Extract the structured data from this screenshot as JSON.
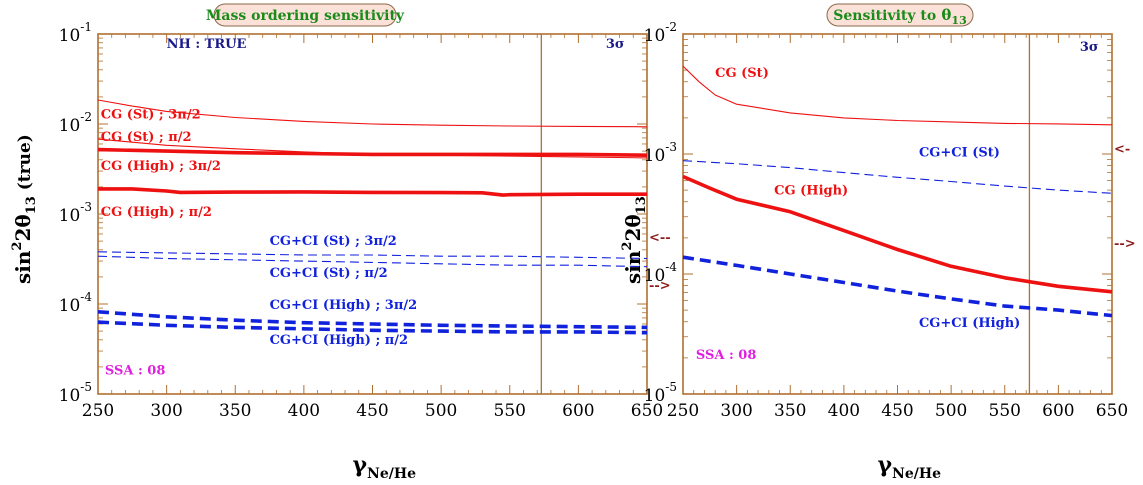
{
  "chart_data": [
    {
      "type": "line",
      "title": "Mass ordering sensitivity",
      "xlabel": "γ",
      "xlabel_sub": "Ne/He",
      "ylabel": "sin²2θ₁₃(true)",
      "ylabel_parts": {
        "exp": "2",
        "base": "sin",
        "mid": "2θ",
        "sub": "13",
        "tail": " (true)"
      },
      "xlim": [
        250,
        650
      ],
      "ylim": [
        1e-05,
        0.1
      ],
      "yscale": "log",
      "x_ticks": [
        250,
        300,
        350,
        400,
        450,
        500,
        550,
        600,
        650
      ],
      "y_ticks": [
        {
          "value": 1e-05,
          "exp": "-5"
        },
        {
          "value": 0.0001,
          "exp": "-4"
        },
        {
          "value": 0.001,
          "exp": "-3"
        },
        {
          "value": 0.01,
          "exp": "-2"
        },
        {
          "value": 0.1,
          "exp": "-1"
        }
      ],
      "ytick_base": "10",
      "vline_x": 573,
      "colors": {
        "red": "#ee1111",
        "blue": "#1122dd",
        "vline": "#b07030",
        "arrow": "#8b1a1a",
        "magenta": "#e020e0",
        "navy": "#1a1a8a",
        "title_green": "#1a8a1a",
        "title_bg": "#fbe1d8"
      },
      "top_labels": [
        {
          "text": "NH : TRUE",
          "color": "navy",
          "anchor_x": 300,
          "anchor_y": 0.07
        },
        {
          "text": "3σ",
          "color": "navy",
          "anchor_x": 620,
          "anchor_y": 0.07
        }
      ],
      "corner_label": {
        "text": "SSA : 08",
        "color": "magenta",
        "anchor_x": 255,
        "anchor_y": 1.65e-05
      },
      "arrows": [
        {
          "text": "<--",
          "anchor_y": 0.00055
        },
        {
          "text": "-->",
          "anchor_y": 0.00016
        }
      ],
      "series": [
        {
          "name": "CG (St) ; 3π/2",
          "style": "thin",
          "color": "red",
          "x": [
            250,
            275,
            300,
            350,
            400,
            450,
            500,
            550,
            600,
            650
          ],
          "y": [
            0.0185,
            0.0158,
            0.0138,
            0.0118,
            0.0107,
            0.01,
            0.0097,
            0.0095,
            0.0094,
            0.0093
          ],
          "label_at": [
            252,
            0.0115
          ]
        },
        {
          "name": "CG (St) ; π/2",
          "style": "thin",
          "color": "red",
          "x": [
            250,
            300,
            350,
            400,
            450,
            500,
            550,
            600,
            650
          ],
          "y": [
            0.0068,
            0.0058,
            0.0053,
            0.0049,
            0.0046,
            0.0045,
            0.0044,
            0.0043,
            0.0042
          ],
          "label_at": [
            252,
            0.0065
          ]
        },
        {
          "name": "CG (High) ;  3π/2",
          "style": "thick",
          "color": "red",
          "x": [
            250,
            300,
            350,
            400,
            450,
            500,
            550,
            600,
            650
          ],
          "y": [
            0.0052,
            0.005,
            0.0048,
            0.0047,
            0.0046,
            0.0046,
            0.0046,
            0.0046,
            0.0045
          ],
          "label_at": [
            252,
            0.0031
          ]
        },
        {
          "name": "CG (High) ; π/2",
          "style": "thick",
          "color": "red",
          "x": [
            250,
            275,
            300,
            310,
            350,
            400,
            450,
            500,
            530,
            545,
            550,
            600,
            650
          ],
          "y": [
            0.0019,
            0.0019,
            0.0018,
            0.00174,
            0.00175,
            0.00176,
            0.00174,
            0.00173,
            0.00172,
            0.00162,
            0.00164,
            0.00166,
            0.00166
          ],
          "label_at": [
            252,
            0.00095
          ]
        },
        {
          "name": "CG+CI (St) ;  3π/2",
          "style": "thin-dashed",
          "color": "blue",
          "x": [
            250,
            300,
            350,
            400,
            450,
            500,
            550,
            600,
            650
          ],
          "y": [
            0.00038,
            0.00037,
            0.00036,
            0.00035,
            0.00035,
            0.00034,
            0.00034,
            0.00033,
            0.00032
          ],
          "label_at": [
            375,
            0.00045
          ]
        },
        {
          "name": "CG+CI (St) ;  π/2",
          "style": "thin-dashed",
          "color": "blue",
          "x": [
            250,
            300,
            350,
            400,
            450,
            500,
            550,
            600,
            650
          ],
          "y": [
            0.00034,
            0.00032,
            0.00031,
            0.0003,
            0.00029,
            0.00028,
            0.00027,
            0.00027,
            0.00026
          ],
          "label_at": [
            375,
            0.0002
          ]
        },
        {
          "name": "CG+CI (High) ;  3π/2",
          "style": "thick-dashed",
          "color": "blue",
          "x": [
            250,
            300,
            350,
            400,
            450,
            500,
            550,
            600,
            650
          ],
          "y": [
            8.2e-05,
            7.2e-05,
            6.6e-05,
            6.2e-05,
            6e-05,
            5.8e-05,
            5.7e-05,
            5.6e-05,
            5.5e-05
          ],
          "label_at": [
            375,
            8.8e-05
          ]
        },
        {
          "name": "CG+CI (High) ;  π/2",
          "style": "thick-dashed",
          "color": "blue",
          "x": [
            250,
            300,
            350,
            400,
            450,
            500,
            550,
            600,
            650
          ],
          "y": [
            6.3e-05,
            5.8e-05,
            5.5e-05,
            5.3e-05,
            5.1e-05,
            5e-05,
            4.9e-05,
            4.9e-05,
            4.8e-05
          ],
          "label_at": [
            375,
            3.6e-05
          ]
        }
      ]
    },
    {
      "type": "line",
      "title": "Sensitivity to",
      "title_symbol": "θ",
      "title_sub": "13",
      "xlabel": "γ",
      "xlabel_sub": "Ne/He",
      "ylabel": "sin²2θ₁₃",
      "ylabel_parts": {
        "exp": "2",
        "base": "sin",
        "mid": "2θ",
        "sub": "13",
        "tail": ""
      },
      "xlim": [
        250,
        650
      ],
      "ylim": [
        1e-05,
        0.01
      ],
      "yscale": "log",
      "x_ticks": [
        250,
        300,
        350,
        400,
        450,
        500,
        550,
        600,
        650
      ],
      "y_ticks": [
        {
          "value": 1e-05,
          "exp": "-5"
        },
        {
          "value": 0.0001,
          "exp": "-4"
        },
        {
          "value": 0.001,
          "exp": "-3"
        },
        {
          "value": 0.01,
          "exp": "-2"
        }
      ],
      "ytick_base": "10",
      "vline_x": 573,
      "colors": {
        "red": "#ee1111",
        "blue": "#1122dd",
        "vline": "#b07030",
        "arrow": "#8b1a1a",
        "magenta": "#e020e0",
        "navy": "#1a1a8a",
        "title_green": "#1a8a1a",
        "title_bg": "#fbe1d8"
      },
      "top_labels": [
        {
          "text": "3σ",
          "color": "navy",
          "anchor_x": 620,
          "anchor_y": 0.0072
        }
      ],
      "corner_label": {
        "text": "SSA : 08",
        "color": "magenta",
        "anchor_x": 262,
        "anchor_y": 1.95e-05
      },
      "arrows": [
        {
          "text": "<-",
          "anchor_y": 0.0011
        },
        {
          "text": "-->",
          "anchor_y": 0.00018
        }
      ],
      "series": [
        {
          "name": "CG (St)",
          "style": "thin",
          "color": "red",
          "x": [
            250,
            265,
            280,
            300,
            350,
            400,
            450,
            500,
            550,
            600,
            650
          ],
          "y": [
            0.0054,
            0.004,
            0.0031,
            0.0026,
            0.0022,
            0.002,
            0.0019,
            0.00185,
            0.0018,
            0.00178,
            0.00175
          ],
          "label_at": [
            280,
            0.0044
          ]
        },
        {
          "name": "CG+CI (St)",
          "style": "thin-dashed",
          "color": "blue",
          "x": [
            250,
            300,
            350,
            400,
            450,
            500,
            550,
            600,
            650
          ],
          "y": [
            0.00088,
            0.00083,
            0.00077,
            0.0007,
            0.00064,
            0.00059,
            0.00054,
            0.0005,
            0.00047
          ],
          "label_at": [
            470,
            0.00095
          ]
        },
        {
          "name": "CG (High)",
          "style": "thick",
          "color": "red",
          "x": [
            250,
            275,
            300,
            350,
            400,
            450,
            500,
            550,
            600,
            650
          ],
          "y": [
            0.00065,
            0.00052,
            0.00042,
            0.00033,
            0.00023,
            0.00016,
            0.000116,
            9.3e-05,
            7.9e-05,
            7.1e-05
          ],
          "label_at": [
            335,
            0.00046
          ]
        },
        {
          "name": "CG+CI (High)",
          "style": "thick-dashed",
          "color": "blue",
          "x": [
            250,
            300,
            350,
            400,
            450,
            500,
            550,
            600,
            650
          ],
          "y": [
            0.000138,
            0.000118,
            0.0001,
            8.5e-05,
            7.2e-05,
            6.2e-05,
            5.4e-05,
            5e-05,
            4.5e-05
          ],
          "label_at": [
            470,
            3.6e-05
          ]
        }
      ]
    }
  ]
}
